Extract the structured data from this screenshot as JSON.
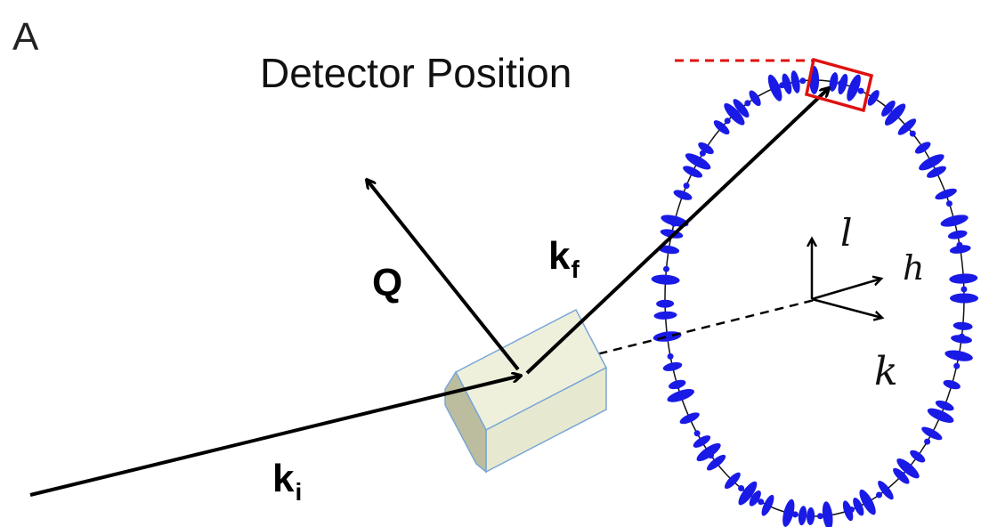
{
  "panel_label": "A",
  "detector_label": "Detector Position",
  "vectors": {
    "incident": {
      "letter": "k",
      "subscript": "i"
    },
    "scattered": {
      "letter": "k",
      "subscript": "f"
    },
    "transfer": {
      "letter": "Q"
    }
  },
  "axes": {
    "l": "l",
    "h": "h",
    "k": "k"
  },
  "colors": {
    "ellipse_dots": "#1a1ae6",
    "detector": "#e01010",
    "crystal_fill": "#e9ecd7",
    "crystal_edge": "#7aa6d6",
    "arrows": "#000000"
  }
}
